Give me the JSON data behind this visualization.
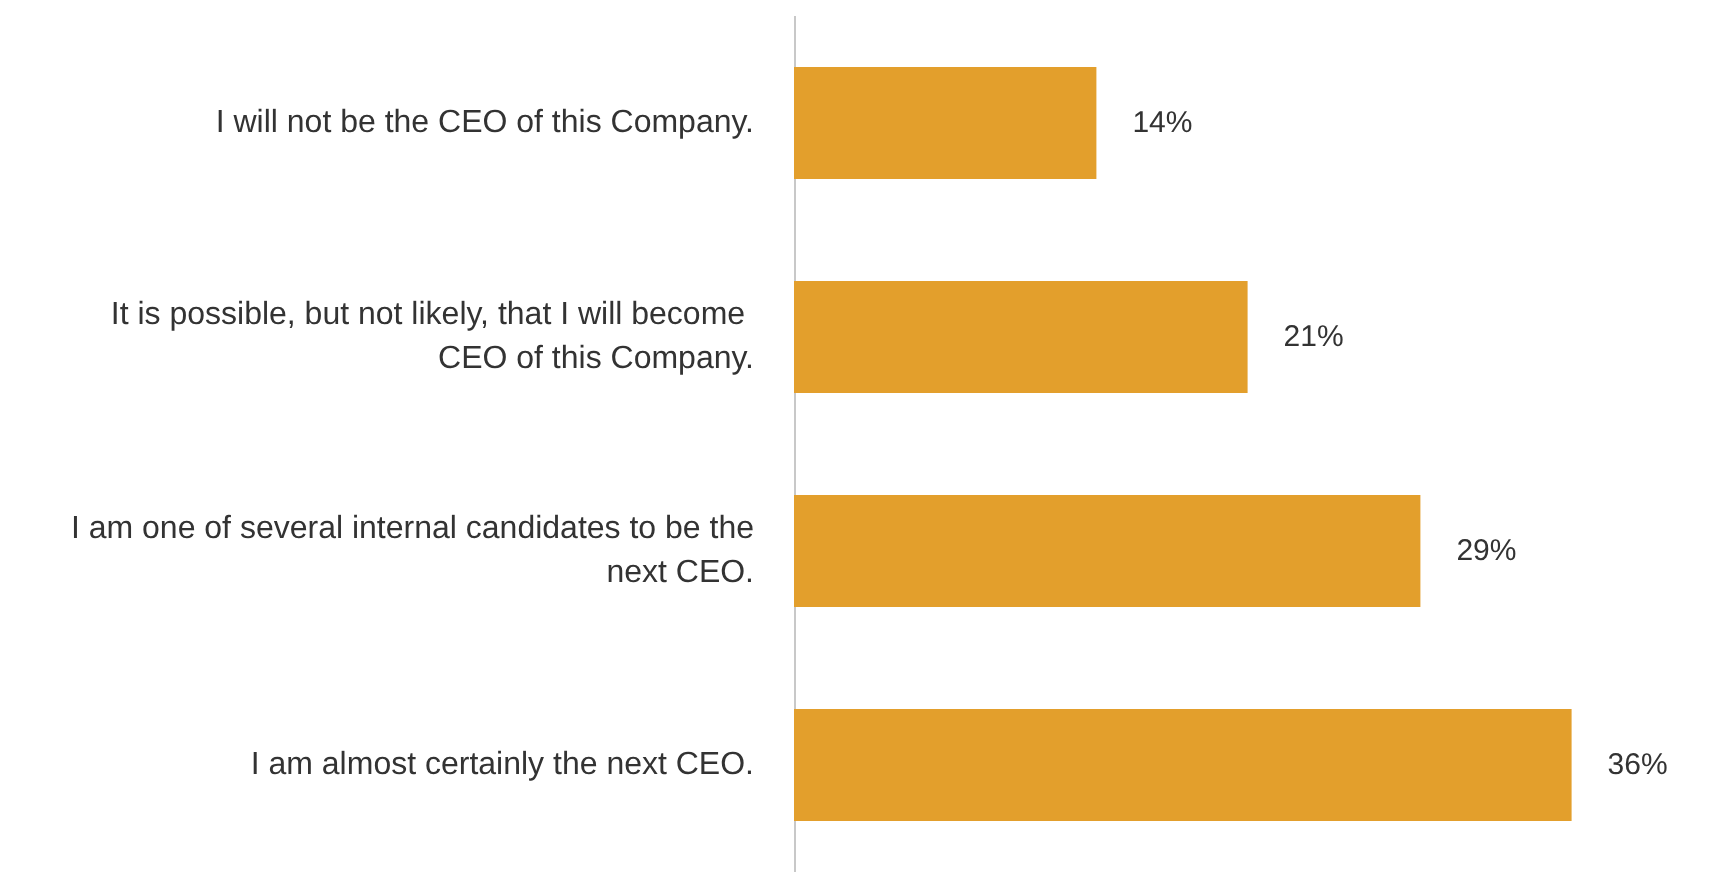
{
  "chart_data": {
    "type": "bar",
    "orientation": "horizontal",
    "categories": [
      "I will not be the CEO of this Company.",
      "It is possible, but not likely, that I will become CEO of this Company.",
      "I am one of several internal candidates to be the next CEO.",
      "I am almost certainly the next CEO."
    ],
    "values": [
      14,
      21,
      29,
      36
    ],
    "value_labels": [
      "14%",
      "21%",
      "29%",
      "36%"
    ],
    "color": "#e39f2c",
    "tick_labels": "y"
  }
}
